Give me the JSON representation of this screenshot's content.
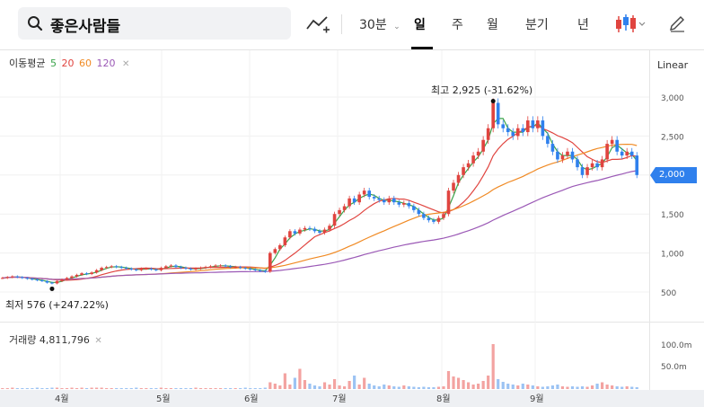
{
  "search": {
    "value": "좋은사람들"
  },
  "toolbar": {
    "interval": "30분",
    "periods": [
      "일",
      "주",
      "월",
      "분기",
      "년"
    ],
    "active_period": "일"
  },
  "ma_legend": {
    "label": "이동평균",
    "periods": [
      "5",
      "20",
      "60",
      "120"
    ],
    "colors": [
      "#3aa34a",
      "#e0443f",
      "#f08a24",
      "#9b59b6"
    ]
  },
  "volume_legend": {
    "label": "거래량",
    "value": "4,811,796"
  },
  "annotations": {
    "high": "최고 2,925 (-31.62%)",
    "low": "최저 576 (+247.22%)"
  },
  "yaxis": {
    "scale": "Linear",
    "ticks": [
      "3,000",
      "2,500",
      "2,000",
      "1,500",
      "1,000",
      "500"
    ],
    "current_price": "2,000"
  },
  "volume_axis": {
    "ticks": [
      "100.0m",
      "50.0m"
    ]
  },
  "xaxis": {
    "labels": [
      "4월",
      "5월",
      "6월",
      "7월",
      "8월",
      "9월"
    ]
  },
  "colors": {
    "up": "#e0443f",
    "down": "#2f80ed",
    "current_tag": "#2f80ed"
  },
  "chart_data": {
    "type": "candlestick",
    "price_range": [
      300,
      3200
    ],
    "volume_range": [
      0,
      110000000
    ],
    "months_x": [
      "4월",
      "5월",
      "6월",
      "7월",
      "8월",
      "9월"
    ],
    "closes": [
      680,
      690,
      700,
      690,
      680,
      670,
      660,
      650,
      640,
      620,
      610,
      640,
      660,
      680,
      700,
      720,
      740,
      730,
      750,
      780,
      810,
      820,
      830,
      820,
      810,
      800,
      790,
      780,
      800,
      800,
      790,
      780,
      810,
      830,
      840,
      820,
      810,
      800,
      790,
      800,
      810,
      820,
      830,
      840,
      840,
      830,
      820,
      820,
      810,
      800,
      790,
      780,
      770,
      760,
      1000,
      1050,
      1100,
      1200,
      1280,
      1250,
      1300,
      1320,
      1310,
      1280,
      1260,
      1300,
      1350,
      1500,
      1550,
      1600,
      1700,
      1650,
      1750,
      1800,
      1720,
      1700,
      1680,
      1650,
      1700,
      1650,
      1620,
      1640,
      1600,
      1550,
      1500,
      1450,
      1420,
      1400,
      1450,
      1500,
      1800,
      1900,
      2000,
      2100,
      2150,
      2250,
      2300,
      2450,
      2600,
      2925,
      2650,
      2600,
      2550,
      2500,
      2600,
      2550,
      2700,
      2600,
      2700,
      2500,
      2400,
      2300,
      2200,
      2250,
      2300,
      2200,
      2100,
      2000,
      2100,
      2150,
      2100,
      2200,
      2400,
      2450,
      2300,
      2250,
      2300,
      2250,
      2000
    ],
    "volumes": [
      2,
      2,
      3,
      2,
      2,
      2,
      2,
      3,
      2,
      2,
      3,
      3,
      2,
      2,
      3,
      2,
      3,
      2,
      3,
      3,
      3,
      2,
      2,
      2,
      2,
      2,
      2,
      3,
      2,
      2,
      2,
      2,
      3,
      2,
      2,
      2,
      2,
      2,
      2,
      3,
      2,
      2,
      2,
      2,
      2,
      2,
      2,
      2,
      2,
      3,
      2,
      2,
      2,
      3,
      15,
      12,
      8,
      35,
      10,
      25,
      45,
      20,
      12,
      8,
      6,
      15,
      10,
      22,
      8,
      6,
      18,
      30,
      10,
      25,
      12,
      8,
      6,
      10,
      8,
      6,
      5,
      8,
      6,
      5,
      4,
      5,
      4,
      4,
      5,
      6,
      40,
      28,
      25,
      20,
      15,
      10,
      12,
      18,
      30,
      100,
      22,
      16,
      12,
      10,
      8,
      12,
      10,
      8,
      6,
      5,
      6,
      8,
      10,
      6,
      5,
      6,
      5,
      6,
      5,
      8,
      12,
      15,
      10,
      8,
      6,
      5,
      6,
      5,
      4
    ]
  }
}
